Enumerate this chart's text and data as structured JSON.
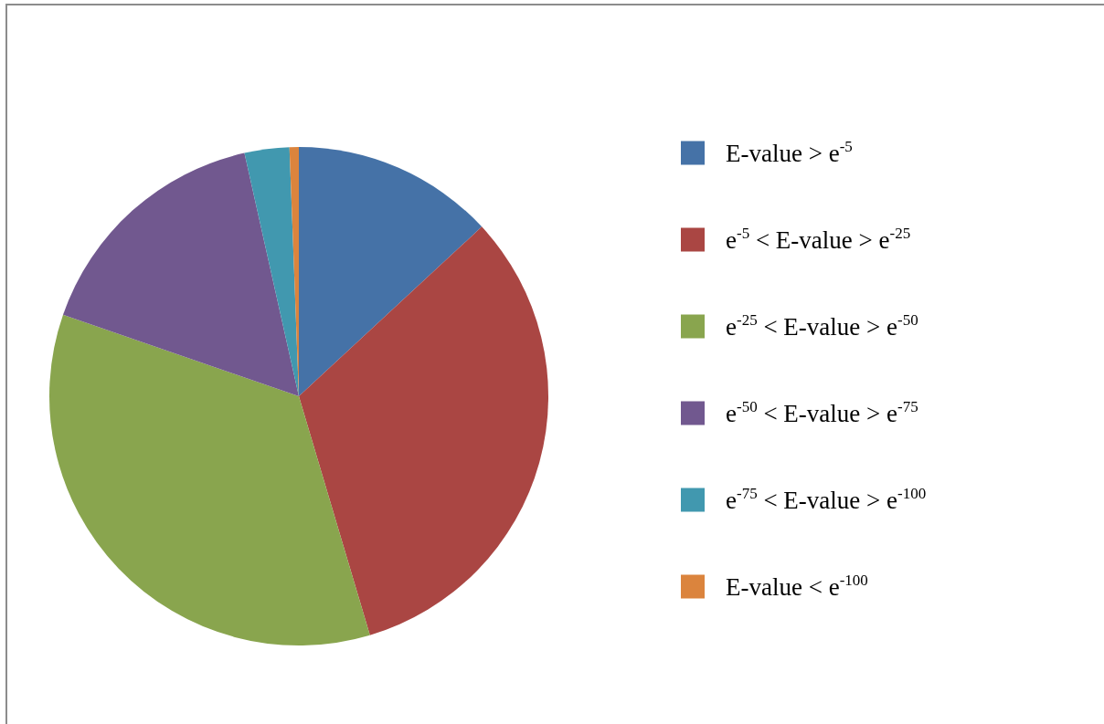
{
  "chart_data": {
    "type": "pie",
    "categories": [
      "E-value > e$^{-5}$",
      "e$^{-5}$ < E-value > e$^{-25}$",
      "e$^{-25}$ < E-value > e$^{-50}$",
      "e$^{-50}$ < E-value > e$^{-75}$",
      "e$^{-75}$ < E-value > e$^{-100}$",
      "E-value < e$^{-100}$"
    ],
    "values": [
      13.1,
      32.3,
      34.9,
      16.2,
      2.9,
      0.6
    ],
    "colors": [
      "#4572a7",
      "#aa4643",
      "#89a54e",
      "#71588f",
      "#4198af",
      "#db843d"
    ],
    "legend": "right"
  }
}
